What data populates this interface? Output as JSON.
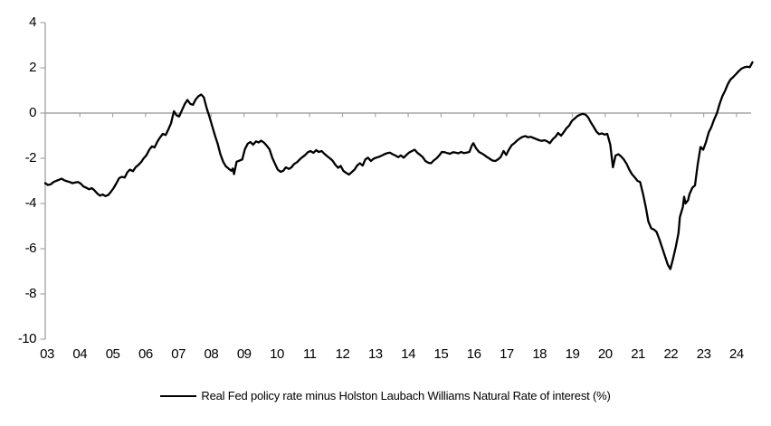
{
  "chart": {
    "legend_label": "Real Fed policy rate minus Holston Laubach Williams Natural Rate of interest (%)",
    "colors": {
      "series": "#000000",
      "axis": "#A6A6A6",
      "text": "#000000",
      "background": "#FFFFFF"
    }
  },
  "chart_data": {
    "type": "line",
    "title": "",
    "xlabel": "",
    "ylabel": "",
    "grid": "zero-axis-only",
    "legend_position": "bottom-center",
    "ylim": [
      -10,
      4
    ],
    "xlim": [
      2003,
      2024.6
    ],
    "y_ticks": [
      4,
      2,
      0,
      -2,
      -4,
      -6,
      -8,
      -10
    ],
    "x_tick_years": [
      2003,
      2004,
      2005,
      2006,
      2007,
      2008,
      2009,
      2010,
      2011,
      2012,
      2013,
      2014,
      2015,
      2016,
      2017,
      2018,
      2019,
      2020,
      2021,
      2022,
      2023,
      2024
    ],
    "x_tick_labels": [
      "03",
      "04",
      "05",
      "06",
      "07",
      "08",
      "09",
      "10",
      "11",
      "12",
      "13",
      "14",
      "15",
      "16",
      "17",
      "18",
      "19",
      "20",
      "21",
      "22",
      "23",
      "24"
    ],
    "series": [
      {
        "name": "Real Fed policy rate minus Holston Laubach Williams Natural Rate of interest (%)",
        "color": "#000000",
        "points": [
          [
            2003.0,
            -3.1
          ],
          [
            2003.08,
            -3.18
          ],
          [
            2003.17,
            -3.15
          ],
          [
            2003.25,
            -3.05
          ],
          [
            2003.33,
            -3.0
          ],
          [
            2003.42,
            -2.95
          ],
          [
            2003.5,
            -2.9
          ],
          [
            2003.58,
            -2.97
          ],
          [
            2003.67,
            -3.02
          ],
          [
            2003.75,
            -3.05
          ],
          [
            2003.83,
            -3.1
          ],
          [
            2003.92,
            -3.07
          ],
          [
            2004.0,
            -3.05
          ],
          [
            2004.08,
            -3.12
          ],
          [
            2004.17,
            -3.25
          ],
          [
            2004.25,
            -3.3
          ],
          [
            2004.33,
            -3.37
          ],
          [
            2004.42,
            -3.32
          ],
          [
            2004.5,
            -3.42
          ],
          [
            2004.58,
            -3.55
          ],
          [
            2004.67,
            -3.65
          ],
          [
            2004.75,
            -3.6
          ],
          [
            2004.83,
            -3.67
          ],
          [
            2004.92,
            -3.62
          ],
          [
            2005.0,
            -3.48
          ],
          [
            2005.08,
            -3.32
          ],
          [
            2005.17,
            -3.1
          ],
          [
            2005.25,
            -2.88
          ],
          [
            2005.33,
            -2.82
          ],
          [
            2005.42,
            -2.85
          ],
          [
            2005.5,
            -2.62
          ],
          [
            2005.58,
            -2.5
          ],
          [
            2005.67,
            -2.57
          ],
          [
            2005.75,
            -2.4
          ],
          [
            2005.83,
            -2.3
          ],
          [
            2005.92,
            -2.17
          ],
          [
            2006.0,
            -2.0
          ],
          [
            2006.08,
            -1.87
          ],
          [
            2006.17,
            -1.62
          ],
          [
            2006.25,
            -1.47
          ],
          [
            2006.33,
            -1.52
          ],
          [
            2006.42,
            -1.25
          ],
          [
            2006.5,
            -1.07
          ],
          [
            2006.58,
            -0.92
          ],
          [
            2006.67,
            -0.97
          ],
          [
            2006.75,
            -0.72
          ],
          [
            2006.83,
            -0.45
          ],
          [
            2006.92,
            0.08
          ],
          [
            2007.0,
            -0.1
          ],
          [
            2007.08,
            -0.15
          ],
          [
            2007.17,
            0.15
          ],
          [
            2007.25,
            0.4
          ],
          [
            2007.33,
            0.58
          ],
          [
            2007.42,
            0.4
          ],
          [
            2007.5,
            0.37
          ],
          [
            2007.58,
            0.6
          ],
          [
            2007.67,
            0.75
          ],
          [
            2007.75,
            0.82
          ],
          [
            2007.83,
            0.7
          ],
          [
            2007.92,
            0.2
          ],
          [
            2008.0,
            -0.15
          ],
          [
            2008.08,
            -0.55
          ],
          [
            2008.17,
            -1.0
          ],
          [
            2008.25,
            -1.35
          ],
          [
            2008.33,
            -1.8
          ],
          [
            2008.42,
            -2.15
          ],
          [
            2008.5,
            -2.35
          ],
          [
            2008.58,
            -2.45
          ],
          [
            2008.67,
            -2.55
          ],
          [
            2008.71,
            -2.45
          ],
          [
            2008.75,
            -2.7
          ],
          [
            2008.83,
            -2.15
          ],
          [
            2008.92,
            -2.1
          ],
          [
            2009.0,
            -2.05
          ],
          [
            2009.08,
            -1.6
          ],
          [
            2009.17,
            -1.35
          ],
          [
            2009.25,
            -1.28
          ],
          [
            2009.33,
            -1.4
          ],
          [
            2009.42,
            -1.25
          ],
          [
            2009.5,
            -1.3
          ],
          [
            2009.58,
            -1.22
          ],
          [
            2009.67,
            -1.32
          ],
          [
            2009.75,
            -1.45
          ],
          [
            2009.83,
            -1.6
          ],
          [
            2009.92,
            -2.0
          ],
          [
            2010.0,
            -2.25
          ],
          [
            2010.08,
            -2.5
          ],
          [
            2010.17,
            -2.6
          ],
          [
            2010.25,
            -2.55
          ],
          [
            2010.33,
            -2.4
          ],
          [
            2010.42,
            -2.47
          ],
          [
            2010.5,
            -2.4
          ],
          [
            2010.58,
            -2.25
          ],
          [
            2010.67,
            -2.17
          ],
          [
            2010.75,
            -2.05
          ],
          [
            2010.83,
            -1.95
          ],
          [
            2010.92,
            -1.85
          ],
          [
            2011.0,
            -1.73
          ],
          [
            2011.08,
            -1.68
          ],
          [
            2011.17,
            -1.76
          ],
          [
            2011.25,
            -1.64
          ],
          [
            2011.33,
            -1.72
          ],
          [
            2011.42,
            -1.68
          ],
          [
            2011.5,
            -1.8
          ],
          [
            2011.58,
            -1.9
          ],
          [
            2011.67,
            -2.0
          ],
          [
            2011.75,
            -2.1
          ],
          [
            2011.83,
            -2.28
          ],
          [
            2011.92,
            -2.42
          ],
          [
            2012.0,
            -2.34
          ],
          [
            2012.08,
            -2.55
          ],
          [
            2012.17,
            -2.65
          ],
          [
            2012.25,
            -2.72
          ],
          [
            2012.33,
            -2.62
          ],
          [
            2012.42,
            -2.5
          ],
          [
            2012.5,
            -2.32
          ],
          [
            2012.58,
            -2.22
          ],
          [
            2012.67,
            -2.32
          ],
          [
            2012.75,
            -2.05
          ],
          [
            2012.83,
            -1.97
          ],
          [
            2012.92,
            -2.12
          ],
          [
            2013.0,
            -2.02
          ],
          [
            2013.08,
            -1.97
          ],
          [
            2013.17,
            -1.93
          ],
          [
            2013.25,
            -1.88
          ],
          [
            2013.33,
            -1.82
          ],
          [
            2013.42,
            -1.77
          ],
          [
            2013.5,
            -1.75
          ],
          [
            2013.58,
            -1.82
          ],
          [
            2013.67,
            -1.88
          ],
          [
            2013.75,
            -1.95
          ],
          [
            2013.83,
            -1.87
          ],
          [
            2013.92,
            -1.97
          ],
          [
            2014.0,
            -1.85
          ],
          [
            2014.08,
            -1.75
          ],
          [
            2014.17,
            -1.68
          ],
          [
            2014.25,
            -1.62
          ],
          [
            2014.33,
            -1.75
          ],
          [
            2014.42,
            -1.85
          ],
          [
            2014.5,
            -1.95
          ],
          [
            2014.58,
            -2.12
          ],
          [
            2014.67,
            -2.2
          ],
          [
            2014.75,
            -2.22
          ],
          [
            2014.83,
            -2.1
          ],
          [
            2014.92,
            -2.0
          ],
          [
            2015.0,
            -1.87
          ],
          [
            2015.08,
            -1.72
          ],
          [
            2015.17,
            -1.73
          ],
          [
            2015.25,
            -1.77
          ],
          [
            2015.33,
            -1.8
          ],
          [
            2015.42,
            -1.73
          ],
          [
            2015.5,
            -1.75
          ],
          [
            2015.58,
            -1.78
          ],
          [
            2015.67,
            -1.72
          ],
          [
            2015.75,
            -1.77
          ],
          [
            2015.83,
            -1.75
          ],
          [
            2015.92,
            -1.72
          ],
          [
            2016.0,
            -1.42
          ],
          [
            2016.04,
            -1.33
          ],
          [
            2016.12,
            -1.55
          ],
          [
            2016.21,
            -1.72
          ],
          [
            2016.29,
            -1.78
          ],
          [
            2016.37,
            -1.85
          ],
          [
            2016.46,
            -1.95
          ],
          [
            2016.54,
            -2.02
          ],
          [
            2016.62,
            -2.1
          ],
          [
            2016.71,
            -2.12
          ],
          [
            2016.79,
            -2.05
          ],
          [
            2016.87,
            -1.95
          ],
          [
            2016.96,
            -1.68
          ],
          [
            2017.04,
            -1.85
          ],
          [
            2017.12,
            -1.62
          ],
          [
            2017.21,
            -1.42
          ],
          [
            2017.29,
            -1.33
          ],
          [
            2017.37,
            -1.22
          ],
          [
            2017.46,
            -1.12
          ],
          [
            2017.54,
            -1.05
          ],
          [
            2017.62,
            -1.02
          ],
          [
            2017.71,
            -1.07
          ],
          [
            2017.79,
            -1.05
          ],
          [
            2017.87,
            -1.1
          ],
          [
            2017.96,
            -1.15
          ],
          [
            2018.04,
            -1.2
          ],
          [
            2018.12,
            -1.23
          ],
          [
            2018.21,
            -1.2
          ],
          [
            2018.29,
            -1.25
          ],
          [
            2018.37,
            -1.33
          ],
          [
            2018.46,
            -1.15
          ],
          [
            2018.54,
            -1.05
          ],
          [
            2018.62,
            -0.88
          ],
          [
            2018.71,
            -1.0
          ],
          [
            2018.79,
            -0.85
          ],
          [
            2018.87,
            -0.68
          ],
          [
            2018.96,
            -0.55
          ],
          [
            2019.04,
            -0.35
          ],
          [
            2019.12,
            -0.25
          ],
          [
            2019.21,
            -0.13
          ],
          [
            2019.29,
            -0.07
          ],
          [
            2019.37,
            -0.03
          ],
          [
            2019.46,
            -0.07
          ],
          [
            2019.54,
            -0.2
          ],
          [
            2019.62,
            -0.42
          ],
          [
            2019.71,
            -0.62
          ],
          [
            2019.79,
            -0.82
          ],
          [
            2019.87,
            -0.93
          ],
          [
            2019.96,
            -0.9
          ],
          [
            2020.04,
            -0.95
          ],
          [
            2020.12,
            -0.92
          ],
          [
            2020.21,
            -1.4
          ],
          [
            2020.29,
            -2.4
          ],
          [
            2020.37,
            -1.88
          ],
          [
            2020.46,
            -1.82
          ],
          [
            2020.54,
            -1.92
          ],
          [
            2020.62,
            -2.05
          ],
          [
            2020.71,
            -2.25
          ],
          [
            2020.79,
            -2.5
          ],
          [
            2020.87,
            -2.7
          ],
          [
            2020.96,
            -2.85
          ],
          [
            2021.04,
            -3.0
          ],
          [
            2021.12,
            -3.05
          ],
          [
            2021.21,
            -3.6
          ],
          [
            2021.29,
            -4.15
          ],
          [
            2021.37,
            -4.8
          ],
          [
            2021.46,
            -5.1
          ],
          [
            2021.54,
            -5.15
          ],
          [
            2021.62,
            -5.25
          ],
          [
            2021.71,
            -5.6
          ],
          [
            2021.79,
            -5.95
          ],
          [
            2021.87,
            -6.3
          ],
          [
            2021.96,
            -6.7
          ],
          [
            2022.04,
            -6.9
          ],
          [
            2022.12,
            -6.45
          ],
          [
            2022.21,
            -5.9
          ],
          [
            2022.29,
            -5.3
          ],
          [
            2022.33,
            -4.6
          ],
          [
            2022.42,
            -4.15
          ],
          [
            2022.46,
            -3.7
          ],
          [
            2022.5,
            -4.0
          ],
          [
            2022.58,
            -3.85
          ],
          [
            2022.62,
            -3.6
          ],
          [
            2022.71,
            -3.3
          ],
          [
            2022.79,
            -3.2
          ],
          [
            2022.87,
            -2.3
          ],
          [
            2022.96,
            -1.5
          ],
          [
            2023.04,
            -1.62
          ],
          [
            2023.12,
            -1.3
          ],
          [
            2023.21,
            -0.85
          ],
          [
            2023.29,
            -0.62
          ],
          [
            2023.37,
            -0.3
          ],
          [
            2023.46,
            0.0
          ],
          [
            2023.54,
            0.4
          ],
          [
            2023.62,
            0.73
          ],
          [
            2023.71,
            1.0
          ],
          [
            2023.79,
            1.28
          ],
          [
            2023.87,
            1.48
          ],
          [
            2023.96,
            1.6
          ],
          [
            2024.04,
            1.72
          ],
          [
            2024.12,
            1.85
          ],
          [
            2024.21,
            1.97
          ],
          [
            2024.29,
            2.02
          ],
          [
            2024.37,
            2.05
          ],
          [
            2024.46,
            2.03
          ],
          [
            2024.54,
            2.25
          ]
        ]
      }
    ]
  }
}
